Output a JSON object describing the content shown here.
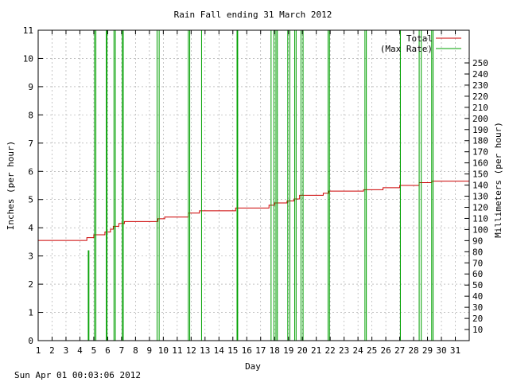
{
  "chart_data": {
    "type": "line",
    "title": "Rain Fall ending 31 March 2012",
    "xlabel": "Day",
    "ylabel": "Inches (per hour)",
    "y2label": "Millimeters (per hour)",
    "timestamp": "Sun Apr 01 00:03:06 2012",
    "xlim": [
      1,
      32
    ],
    "ylim": [
      0,
      11
    ],
    "y2lim": [
      0,
      279.4
    ],
    "x_ticks": [
      1,
      2,
      3,
      4,
      5,
      6,
      7,
      8,
      9,
      10,
      11,
      12,
      13,
      14,
      15,
      16,
      17,
      18,
      19,
      20,
      21,
      22,
      23,
      24,
      25,
      26,
      27,
      28,
      29,
      30,
      31
    ],
    "y_ticks": [
      0,
      1,
      2,
      3,
      4,
      5,
      6,
      7,
      8,
      9,
      10,
      11
    ],
    "y2_ticks": [
      10,
      20,
      30,
      40,
      50,
      60,
      70,
      80,
      90,
      100,
      110,
      120,
      130,
      140,
      150,
      160,
      170,
      180,
      190,
      200,
      210,
      220,
      230,
      240,
      250
    ],
    "grid": true,
    "legend_position": "top-right",
    "series": [
      {
        "name": "Total",
        "color": "#cc0000",
        "style": "step",
        "points": [
          [
            1,
            3.55
          ],
          [
            4.5,
            3.55
          ],
          [
            4.5,
            3.65
          ],
          [
            5,
            3.65
          ],
          [
            5,
            3.75
          ],
          [
            5.8,
            3.75
          ],
          [
            5.8,
            3.85
          ],
          [
            6.2,
            3.85
          ],
          [
            6.2,
            3.95
          ],
          [
            6.4,
            3.95
          ],
          [
            6.4,
            4.05
          ],
          [
            6.8,
            4.05
          ],
          [
            6.8,
            4.15
          ],
          [
            7.2,
            4.15
          ],
          [
            7.2,
            4.22
          ],
          [
            9.6,
            4.22
          ],
          [
            9.6,
            4.32
          ],
          [
            10.1,
            4.32
          ],
          [
            10.1,
            4.38
          ],
          [
            11.8,
            4.38
          ],
          [
            11.8,
            4.52
          ],
          [
            12.6,
            4.52
          ],
          [
            12.6,
            4.6
          ],
          [
            15.2,
            4.6
          ],
          [
            15.2,
            4.7
          ],
          [
            17.6,
            4.7
          ],
          [
            17.6,
            4.8
          ],
          [
            18,
            4.8
          ],
          [
            18,
            4.88
          ],
          [
            18.9,
            4.88
          ],
          [
            18.9,
            4.95
          ],
          [
            19.4,
            4.95
          ],
          [
            19.4,
            5.02
          ],
          [
            19.8,
            5.02
          ],
          [
            19.8,
            5.15
          ],
          [
            21.5,
            5.15
          ],
          [
            21.5,
            5.22
          ],
          [
            21.9,
            5.22
          ],
          [
            21.9,
            5.3
          ],
          [
            24.4,
            5.3
          ],
          [
            24.4,
            5.35
          ],
          [
            25.8,
            5.35
          ],
          [
            25.8,
            5.42
          ],
          [
            27,
            5.42
          ],
          [
            27,
            5.5
          ],
          [
            28.4,
            5.5
          ],
          [
            28.4,
            5.6
          ],
          [
            29.3,
            5.6
          ],
          [
            29.3,
            5.65
          ],
          [
            32,
            5.65
          ]
        ]
      },
      {
        "name": "(Max Rate)",
        "color": "#00a000",
        "style": "impulse",
        "bars": [
          [
            4.6,
            3.2
          ],
          [
            4.65,
            3.2
          ],
          [
            5.05,
            11
          ],
          [
            5.15,
            11
          ],
          [
            5.9,
            11
          ],
          [
            5.95,
            11
          ],
          [
            6.45,
            11
          ],
          [
            6.55,
            11
          ],
          [
            7.05,
            11
          ],
          [
            7.12,
            11
          ],
          [
            9.55,
            11
          ],
          [
            9.7,
            11
          ],
          [
            11.8,
            11
          ],
          [
            11.9,
            11
          ],
          [
            12.75,
            11
          ],
          [
            15.3,
            11
          ],
          [
            15.35,
            11
          ],
          [
            17.75,
            11
          ],
          [
            17.95,
            11
          ],
          [
            18.1,
            11
          ],
          [
            18.2,
            11
          ],
          [
            18.95,
            11
          ],
          [
            19.1,
            11
          ],
          [
            19.45,
            11
          ],
          [
            19.55,
            11
          ],
          [
            19.9,
            11
          ],
          [
            20.05,
            11
          ],
          [
            21.85,
            11
          ],
          [
            21.95,
            11
          ],
          [
            24.5,
            11
          ],
          [
            24.6,
            11
          ],
          [
            27.05,
            11
          ],
          [
            28.4,
            11
          ],
          [
            28.55,
            11
          ],
          [
            29.3,
            11
          ],
          [
            29.4,
            11
          ]
        ]
      }
    ]
  }
}
